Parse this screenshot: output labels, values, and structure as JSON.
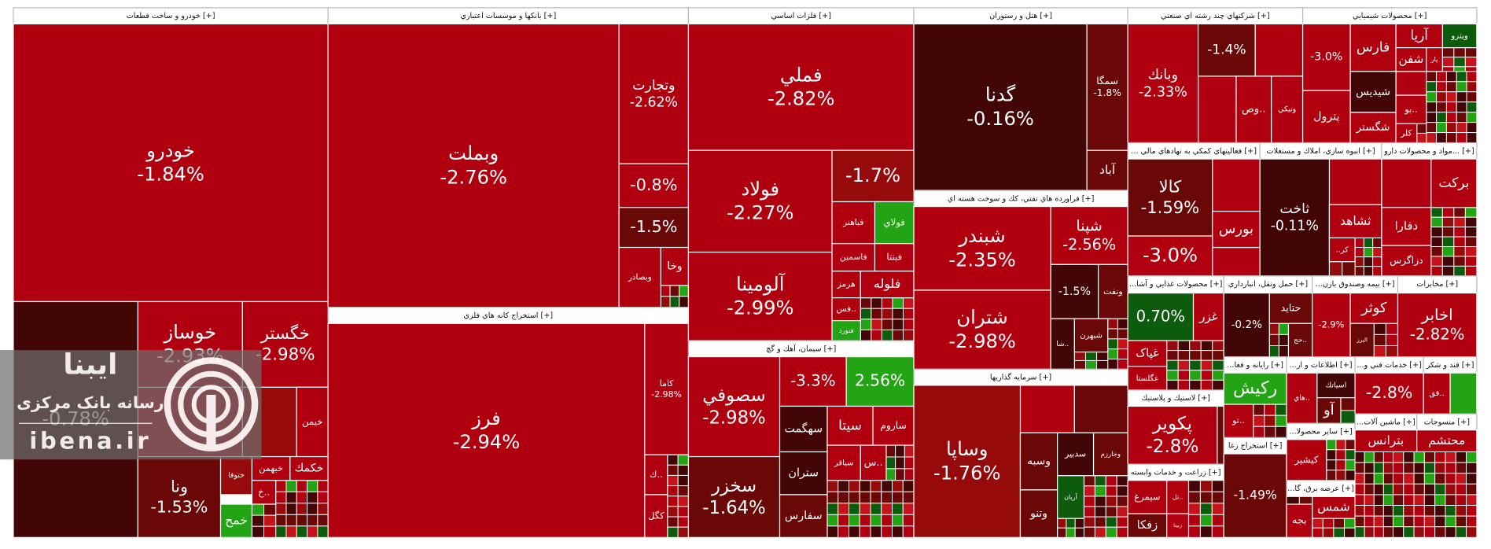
{
  "sectors": [
    {
      "title": "خودرو و ساخت قطعات [+]",
      "tiles": [
        {
          "name": "خودرو",
          "change": "-1.84%"
        },
        {
          "change": "-0.78%"
        },
        {
          "name": "خوساز",
          "change": "-2.93%"
        },
        {
          "name": "خگستر",
          "change": "-2.98%"
        },
        {
          "name": "خیمن"
        },
        {
          "name": "ونا",
          "change": "-1.53%"
        },
        {
          "name": "ختوقا"
        },
        {
          "name": "خبهمن"
        },
        {
          "name": "خكمك"
        },
        {
          "name": "خ.."
        },
        {
          "name": "خمح"
        }
      ]
    },
    {
      "title": "بانكها و موسسات اعتباري [+]",
      "tiles": [
        {
          "name": "وبملت",
          "change": "-2.76%"
        },
        {
          "name": "وتجارت",
          "change": "-2.62%"
        },
        {
          "change": "-0.8%"
        },
        {
          "change": "-1.5%"
        },
        {
          "name": "وبصادر"
        },
        {
          "name": "وخا"
        }
      ]
    },
    {
      "title": "استخراج كانه هاي فلزي [+]",
      "tiles": [
        {
          "name": "فرز",
          "change": "-2.94%"
        },
        {
          "name": "كاما",
          "change": "-2.98%"
        },
        {
          "name": "ك.."
        },
        {
          "name": "كگل"
        }
      ]
    },
    {
      "title": "فلزات اساسي [+]",
      "tiles": [
        {
          "name": "فملي",
          "change": "-2.82%"
        },
        {
          "name": "فولاد",
          "change": "-2.27%"
        },
        {
          "name": "آلومينا",
          "change": "-2.99%"
        },
        {
          "change": "-1.7%"
        },
        {
          "name": "فباهنر"
        },
        {
          "name": "فولاي"
        },
        {
          "name": "فاسمين"
        },
        {
          "name": "فبنتا"
        },
        {
          "name": "هرمز"
        },
        {
          "name": "فلوله"
        },
        {
          "name": "فس.."
        },
        {
          "name": "فنورد"
        }
      ]
    },
    {
      "title": "سيمان، آهك و گچ [+]",
      "tiles": [
        {
          "name": "سصوفي",
          "change": "-2.98%"
        },
        {
          "name": "سخزر",
          "change": "-1.64%"
        },
        {
          "change": "-3.3%"
        },
        {
          "change": "2.56%"
        },
        {
          "name": "سهگمت"
        },
        {
          "name": "سيتا"
        },
        {
          "name": "ساروم"
        },
        {
          "name": "ستران"
        },
        {
          "name": "سفارس"
        },
        {
          "name": "سباقر"
        },
        {
          "name": "س.."
        }
      ]
    },
    {
      "title": "هتل و رستوران [+]",
      "tiles": [
        {
          "name": "گدنا",
          "change": "-0.16%"
        },
        {
          "name": "سمگا",
          "change": "-1.8%"
        },
        {
          "name": "آباد"
        }
      ]
    },
    {
      "title": "فراورده هاي نفتي، كك و سوخت هسته اي [+]",
      "tiles": [
        {
          "name": "شبندر",
          "change": "-2.35%"
        },
        {
          "name": "شتران",
          "change": "-2.98%"
        },
        {
          "name": "شپنا",
          "change": "-2.56%"
        },
        {
          "change": "-1.5%"
        },
        {
          "name": "ونفت"
        },
        {
          "name": "شا.."
        },
        {
          "name": "شبهرن"
        }
      ]
    },
    {
      "title": "سرمايه گذاريها [+]",
      "tiles": [
        {
          "name": "وساپا",
          "change": "-1.76%"
        },
        {
          "name": "وسبه"
        },
        {
          "name": "وتنو"
        },
        {
          "name": "سدبير"
        },
        {
          "name": "وخارزم"
        },
        {
          "name": "آريان"
        }
      ]
    },
    {
      "title": "شركتهاي چند رشته اي صنعتي [+]",
      "tiles": [
        {
          "name": "وبانك",
          "change": "-2.33%"
        },
        {
          "change": "-1.4%"
        },
        {
          "name": "وص.."
        },
        {
          "name": "ونيكي"
        }
      ]
    },
    {
      "title": "محصولات شيميايي [+]",
      "tiles": [
        {
          "name": "ويترو"
        },
        {
          "name": "آريا"
        },
        {
          "name": "فارس"
        },
        {
          "name": "شفن"
        },
        {
          "name": "پار"
        },
        {
          "name": "شيديس"
        },
        {
          "name": "شگستر"
        },
        {
          "name": "پترول"
        },
        {
          "change": "-3.0%"
        },
        {
          "name": "بو.."
        },
        {
          "name": "كلر"
        }
      ]
    },
    {
      "title": "... فعاليتهاي كمكي به نهادهاي مالي [+]",
      "tiles": [
        {
          "name": "كالا",
          "change": "-1.59%"
        },
        {
          "name": "بورس"
        },
        {
          "change": "-3.0%"
        }
      ]
    },
    {
      "title": "انبوه سازي، املاك و مستغلات [+]",
      "tiles": [
        {
          "name": "ثاخت",
          "change": "-0.11%"
        },
        {
          "name": "ثشاهد"
        },
        {
          "name": "..كر"
        }
      ]
    },
    {
      "title": "مواد و محصولات دارو... [+]",
      "tiles": [
        {
          "name": "بركت"
        },
        {
          "name": "دفارا"
        },
        {
          "name": "دزاگرس"
        }
      ]
    },
    {
      "title": "...محصولات غذايي و آشا [+]",
      "tiles": [
        {
          "change": "0.70%"
        },
        {
          "name": "غزر"
        },
        {
          "name": "غپاک"
        },
        {
          "name": "غگلستا"
        }
      ]
    },
    {
      "title": "لاستيك و پلاستيك [+]",
      "tiles": [
        {
          "name": "پكوير",
          "change": "-2.8%"
        }
      ]
    },
    {
      "title": "زراعت و خدمات وابسته [+]",
      "tiles": [
        {
          "name": "سيمرغ"
        },
        {
          "name": "زفكا"
        },
        {
          "name": "تل.."
        },
        {
          "name": "زبينا"
        }
      ]
    },
    {
      "title": "حمل ونقل، انبارداري [+]",
      "tiles": [
        {
          "change": "-0.2%"
        },
        {
          "name": "حتايد"
        },
        {
          "name": "حج.."
        }
      ]
    },
    {
      "title": "...رايانه و فعا [+]",
      "tiles": [
        {
          "name": "ركيش"
        },
        {
          "name": "تو.."
        }
      ]
    },
    {
      "title": "استخراج زغا [+]",
      "tiles": [
        {
          "change": "-1.49%"
        }
      ]
    },
    {
      "title": "...بيمه وصندوق بازن [+]",
      "tiles": [
        {
          "change": "-2.9%"
        },
        {
          "name": "كوثر"
        },
        {
          "name": "البرز"
        }
      ]
    },
    {
      "title": "مخابرات [+]",
      "tiles": [
        {
          "name": "اخابر",
          "change": "-2.82%"
        }
      ]
    },
    {
      "title": "...اطلاعات و ار [+]",
      "tiles": [
        {
          "name": "اسياتك"
        },
        {
          "name": "آو"
        },
        {
          "name": "هاي.."
        }
      ]
    },
    {
      "title": "...خدمات فني و [+]",
      "tiles": [
        {
          "change": "-2.8%"
        }
      ]
    },
    {
      "title": "قند و شكر [+]",
      "tiles": [
        {
          "name": "قق.."
        }
      ]
    },
    {
      "title": "...ساير محصولا [+]",
      "tiles": [
        {
          "name": "كيشير"
        }
      ]
    },
    {
      "title": "...عرضه برق، گا [+]",
      "tiles": [
        {
          "name": "شمس"
        },
        {
          "name": "بجه"
        }
      ]
    },
    {
      "title": "...ماشين آلات [+]",
      "tiles": [
        {
          "name": "بترانس"
        }
      ]
    },
    {
      "title": "منسوجات [+]",
      "tiles": [
        {
          "name": "محتشم"
        }
      ]
    }
  ],
  "watermark": {
    "brand": "ایبنا",
    "tagline": "رسانه بانک مرکزی",
    "site": "ibena.ir"
  }
}
